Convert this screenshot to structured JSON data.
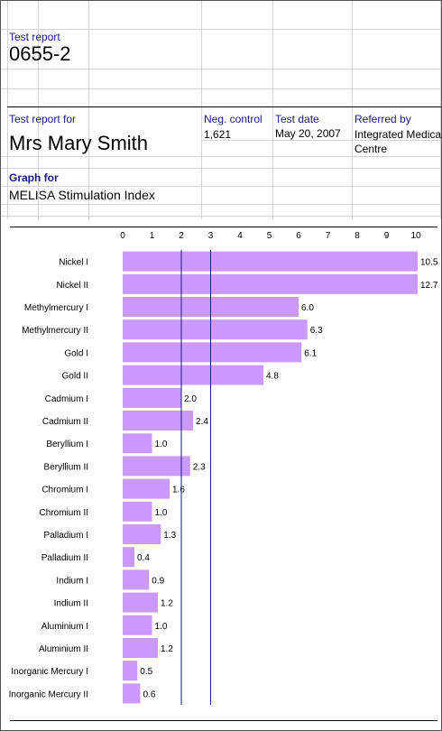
{
  "header": {
    "test_report_label": "Test report",
    "report_number": "0655-2",
    "test_report_for_label": "Test report for",
    "patient_name": "Mrs Mary Smith",
    "neg_control_label": "Neg. control",
    "neg_control_value": "1,621",
    "test_date_label": "Test date",
    "test_date_value": "May 20, 2007",
    "referred_by_label": "Referred by",
    "referred_by_line1": "Integrated Medical",
    "referred_by_line2": "Centre",
    "graph_for_label": "Graph for",
    "graph_title": "MELISA Stimulation Index"
  },
  "colors": {
    "bar": "#cc99ff",
    "reference_line": "#1a1a80",
    "label_blue": "#1a1a80"
  },
  "chart_data": {
    "type": "bar",
    "orientation": "horizontal",
    "xlim": [
      0,
      10
    ],
    "x_ticks": [
      "0",
      "1",
      "2",
      "3",
      "4",
      "5",
      "6",
      "7",
      "8",
      "9",
      "10"
    ],
    "reference_lines": [
      2,
      3
    ],
    "categories": [
      "Nickel I",
      "Nickel II",
      "Methylmercury I",
      "Methylmercury II",
      "Gold I",
      "Gold II",
      "Cadmium I",
      "Cadmium II",
      "Beryllium I",
      "Beryllium II",
      "Chromium I",
      "Chromium II",
      "Palladium I",
      "Palladium II",
      "Indium I",
      "Indium II",
      "Aluminium I",
      "Aluminium II",
      "Inorganic Mercury I",
      "Inorganic Mercury II"
    ],
    "values": [
      10.5,
      12.7,
      6.0,
      6.3,
      6.1,
      4.8,
      2.0,
      2.4,
      1.0,
      2.3,
      1.6,
      1.0,
      1.3,
      0.4,
      0.9,
      1.2,
      1.0,
      1.2,
      0.5,
      0.6
    ],
    "value_labels": [
      "10.5",
      "12.7",
      "6.0",
      "6.3",
      "6.1",
      "4.8",
      "2.0",
      "2.4",
      "1.0",
      "2.3",
      "1.6",
      "1.0",
      "1.3",
      "0.4",
      "0.9",
      "1.2",
      "1.0",
      "1.2",
      "0.5",
      "0.6"
    ]
  }
}
